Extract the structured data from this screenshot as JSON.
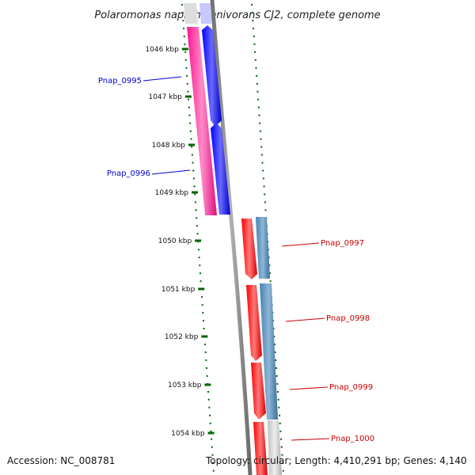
{
  "title": "Polaromonas naphthalenivorans CJ2, complete genome",
  "footer": {
    "accession": "Accession: NC_008781",
    "topology": "Topology: circular; Length: 4,410,291 bp; Genes: 4,140"
  },
  "ticks": [
    "1046 kbp",
    "1047 kbp",
    "1048 kbp",
    "1049 kbp",
    "1050 kbp",
    "1051 kbp",
    "1052 kbp",
    "1053 kbp",
    "1054 kbp"
  ],
  "genes": [
    {
      "name": "Pnap_0995",
      "color": "#0000cc"
    },
    {
      "name": "Pnap_0996",
      "color": "#0000cc"
    },
    {
      "name": "Pnap_0997",
      "color": "#cc0000"
    },
    {
      "name": "Pnap_0998",
      "color": "#cc0000"
    },
    {
      "name": "Pnap_0999",
      "color": "#cc0000"
    },
    {
      "name": "Pnap_1000",
      "color": "#cc0000"
    }
  ],
  "colors": {
    "backbone": "#808080",
    "tick_marks": "#006600",
    "blue_genes": "#0000ff",
    "red_genes": "#ff0000",
    "magenta_track": "#ff1493",
    "steelblue_track": "#4682b4",
    "grey_track": "#c0c0c0"
  }
}
